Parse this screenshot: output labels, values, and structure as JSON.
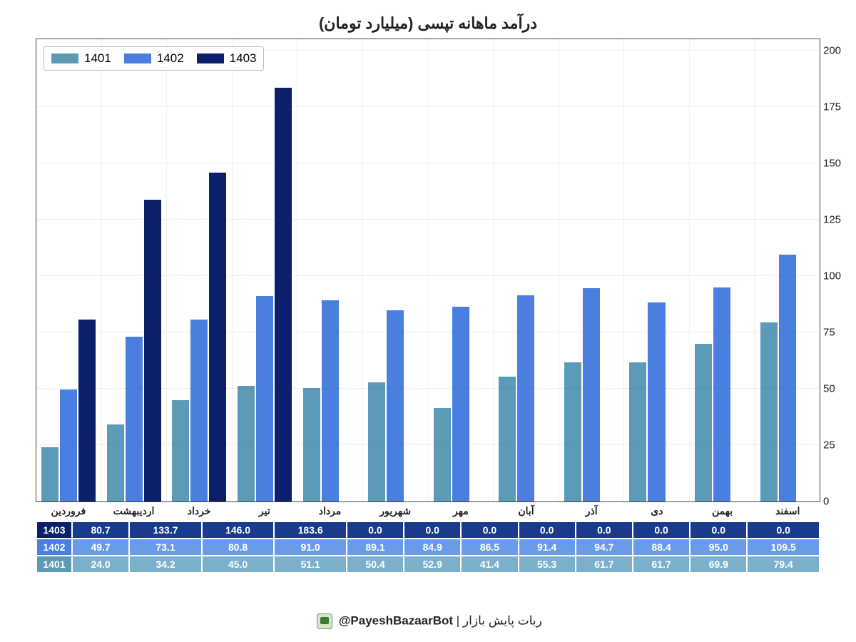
{
  "chart": {
    "type": "bar",
    "title": "درآمد ماهانه تپسی (میلیارد تومان)",
    "title_fontsize": 22,
    "background_color": "#ffffff",
    "border_color": "#444444",
    "months": [
      "فروردین",
      "اردیبهشت",
      "خرداد",
      "تیر",
      "مرداد",
      "شهریور",
      "مهر",
      "آبان",
      "آذر",
      "دی",
      "بهمن",
      "اسفند"
    ],
    "ylim": [
      0,
      205
    ],
    "y_ticks": [
      0,
      25,
      50,
      75,
      100,
      125,
      150,
      175,
      200
    ],
    "label_fontsize": 15,
    "series": [
      {
        "name": "1401",
        "color": "#5b9bb8",
        "values": [
          24.0,
          34.2,
          45.0,
          51.1,
          50.4,
          52.9,
          41.4,
          55.3,
          61.7,
          61.7,
          69.9,
          79.4
        ]
      },
      {
        "name": "1402",
        "color": "#4a7fe0",
        "values": [
          49.7,
          73.1,
          80.8,
          91.0,
          89.1,
          84.9,
          86.5,
          91.4,
          94.7,
          88.4,
          95.0,
          109.5
        ]
      },
      {
        "name": "1403",
        "color": "#0b1f6b",
        "values": [
          80.7,
          133.7,
          146.0,
          183.6,
          0.0,
          0.0,
          0.0,
          0.0,
          0.0,
          0.0,
          0.0,
          0.0
        ]
      }
    ],
    "legend_position": "top-left",
    "bar_width": 0.84
  },
  "table": {
    "row_headers": [
      "1403",
      "1402",
      "1401"
    ],
    "header_cell_colors": {
      "1403": "#0b1f6b",
      "1402": "#4a7fe0",
      "1401": "#5b9bb8"
    },
    "row_cell_colors": {
      "1403": "#1a3a8c",
      "1402": "#6a9be8",
      "1401": "#7bb0cc"
    },
    "rows": {
      "1403": [
        "80.7",
        "133.7",
        "146.0",
        "183.6",
        "0.0",
        "0.0",
        "0.0",
        "0.0",
        "0.0",
        "0.0",
        "0.0",
        "0.0"
      ],
      "1402": [
        "49.7",
        "73.1",
        "80.8",
        "91.0",
        "89.1",
        "84.9",
        "86.5",
        "91.4",
        "94.7",
        "88.4",
        "95.0",
        "109.5"
      ],
      "1401": [
        "24.0",
        "34.2",
        "45.0",
        "51.1",
        "50.4",
        "52.9",
        "41.4",
        "55.3",
        "61.7",
        "61.7",
        "69.9",
        "79.4"
      ]
    }
  },
  "footer": {
    "text_right": "ربات پایش بازار",
    "separator": " | ",
    "handle": "@PayeshBazaarBot",
    "icon": "bot-icon"
  }
}
